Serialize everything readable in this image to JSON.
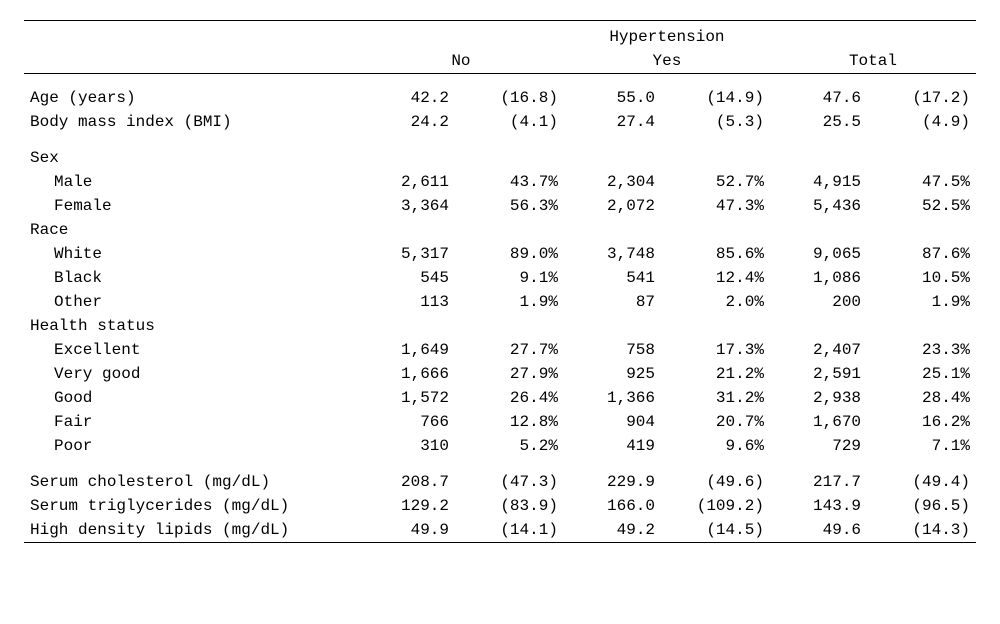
{
  "type": "table",
  "background_color": "#ffffff",
  "text_color": "#000000",
  "font_family": "Consolas, Menlo, Courier New, monospace",
  "font_size_pt": 12,
  "border_color": "#000000",
  "header": {
    "super": "Hypertension",
    "groups": [
      "No",
      "Yes",
      "Total"
    ]
  },
  "sections": [
    {
      "rows": [
        {
          "label": "Age (years)",
          "indent": false,
          "no_n": "42.2",
          "no_p": "(16.8)",
          "yes_n": "55.0",
          "yes_p": "(14.9)",
          "tot_n": "47.6",
          "tot_p": "(17.2)"
        },
        {
          "label": "Body mass index (BMI)",
          "indent": false,
          "no_n": "24.2",
          "no_p": "(4.1)",
          "yes_n": "27.4",
          "yes_p": "(5.3)",
          "tot_n": "25.5",
          "tot_p": "(4.9)"
        }
      ]
    },
    {
      "heading": "Sex",
      "rows": [
        {
          "label": "Male",
          "indent": true,
          "no_n": "2,611",
          "no_p": "43.7%",
          "yes_n": "2,304",
          "yes_p": "52.7%",
          "tot_n": "4,915",
          "tot_p": "47.5%"
        },
        {
          "label": "Female",
          "indent": true,
          "no_n": "3,364",
          "no_p": "56.3%",
          "yes_n": "2,072",
          "yes_p": "47.3%",
          "tot_n": "5,436",
          "tot_p": "52.5%"
        }
      ]
    },
    {
      "heading": "Race",
      "rows": [
        {
          "label": "White",
          "indent": true,
          "no_n": "5,317",
          "no_p": "89.0%",
          "yes_n": "3,748",
          "yes_p": "85.6%",
          "tot_n": "9,065",
          "tot_p": "87.6%"
        },
        {
          "label": "Black",
          "indent": true,
          "no_n": "545",
          "no_p": "9.1%",
          "yes_n": "541",
          "yes_p": "12.4%",
          "tot_n": "1,086",
          "tot_p": "10.5%"
        },
        {
          "label": "Other",
          "indent": true,
          "no_n": "113",
          "no_p": "1.9%",
          "yes_n": "87",
          "yes_p": "2.0%",
          "tot_n": "200",
          "tot_p": "1.9%"
        }
      ]
    },
    {
      "heading": "Health status",
      "rows": [
        {
          "label": "Excellent",
          "indent": true,
          "no_n": "1,649",
          "no_p": "27.7%",
          "yes_n": "758",
          "yes_p": "17.3%",
          "tot_n": "2,407",
          "tot_p": "23.3%"
        },
        {
          "label": "Very good",
          "indent": true,
          "no_n": "1,666",
          "no_p": "27.9%",
          "yes_n": "925",
          "yes_p": "21.2%",
          "tot_n": "2,591",
          "tot_p": "25.1%"
        },
        {
          "label": "Good",
          "indent": true,
          "no_n": "1,572",
          "no_p": "26.4%",
          "yes_n": "1,366",
          "yes_p": "31.2%",
          "tot_n": "2,938",
          "tot_p": "28.4%"
        },
        {
          "label": "Fair",
          "indent": true,
          "no_n": "766",
          "no_p": "12.8%",
          "yes_n": "904",
          "yes_p": "20.7%",
          "tot_n": "1,670",
          "tot_p": "16.2%"
        },
        {
          "label": "Poor",
          "indent": true,
          "no_n": "310",
          "no_p": "5.2%",
          "yes_n": "419",
          "yes_p": "9.6%",
          "tot_n": "729",
          "tot_p": "7.1%"
        }
      ]
    },
    {
      "rows": [
        {
          "label": "Serum cholesterol (mg/dL)",
          "indent": false,
          "no_n": "208.7",
          "no_p": "(47.3)",
          "yes_n": "229.9",
          "yes_p": "(49.6)",
          "tot_n": "217.7",
          "tot_p": "(49.4)"
        },
        {
          "label": "Serum triglycerides (mg/dL)",
          "indent": false,
          "no_n": "129.2",
          "no_p": "(83.9)",
          "yes_n": "166.0",
          "yes_p": "(109.2)",
          "tot_n": "143.9",
          "tot_p": "(96.5)"
        },
        {
          "label": "High density lipids (mg/dL)",
          "indent": false,
          "no_n": "49.9",
          "no_p": "(14.1)",
          "yes_n": "49.2",
          "yes_p": "(14.5)",
          "tot_n": "49.6",
          "tot_p": "(14.3)"
        }
      ]
    }
  ]
}
